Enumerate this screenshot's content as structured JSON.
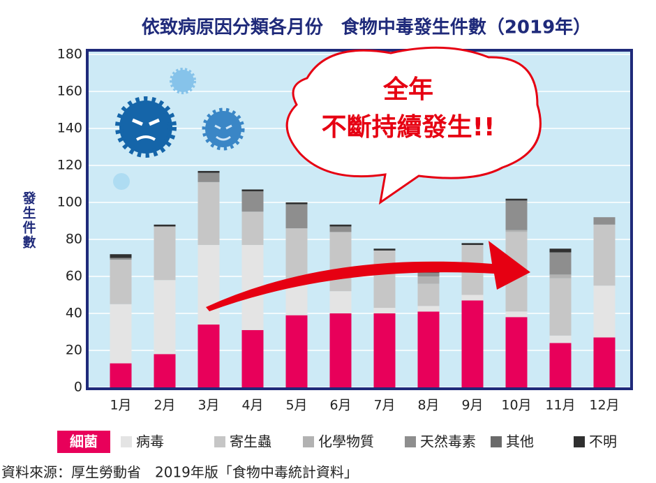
{
  "chart_data": {
    "type": "bar",
    "stacked": true,
    "title": "依致病原因分類各月份　食物中毒發生件數（2019年）",
    "y_label": "發生件數",
    "annotation": [
      "全年",
      "不斷持續發生!!"
    ],
    "source": "資料來源：厚生勞動省　2019年版「食物中毒統計資料」",
    "categories": [
      "1月",
      "2月",
      "3月",
      "4月",
      "5月",
      "6月",
      "7月",
      "8月",
      "9月",
      "10月",
      "11月",
      "12月"
    ],
    "series": [
      {
        "name": "細菌",
        "color": "#e8005a",
        "values": [
          13,
          18,
          34,
          31,
          39,
          40,
          40,
          41,
          47,
          38,
          24,
          27
        ]
      },
      {
        "name": "病毒",
        "color": "#e4e4e4",
        "values": [
          32,
          40,
          43,
          46,
          19,
          12,
          3,
          3,
          3,
          3,
          4,
          28
        ]
      },
      {
        "name": "寄生蟲",
        "color": "#c6c6c6",
        "values": [
          24,
          29,
          34,
          18,
          28,
          32,
          31,
          12,
          27,
          43,
          31,
          33
        ]
      },
      {
        "name": "化學物質",
        "color": "#b2b2b2",
        "values": [
          0,
          0,
          0,
          0,
          0,
          0,
          0,
          4,
          0,
          1,
          2,
          0
        ]
      },
      {
        "name": "天然毒素",
        "color": "#8e8e8e",
        "values": [
          1,
          0,
          5,
          11,
          13,
          3,
          0,
          2,
          0,
          16,
          12,
          4
        ]
      },
      {
        "name": "其他",
        "color": "#6a6a6a",
        "values": [
          0,
          0,
          0,
          0,
          0,
          0,
          0,
          0,
          0,
          0,
          0,
          0
        ]
      },
      {
        "name": "不明",
        "color": "#303030",
        "values": [
          2,
          1,
          1,
          1,
          1,
          1,
          1,
          3,
          1,
          1,
          2,
          0
        ]
      }
    ],
    "ylim": [
      0,
      180
    ],
    "yticks": [
      0,
      20,
      40,
      60,
      80,
      100,
      120,
      140,
      160,
      180
    ],
    "grid": true
  }
}
